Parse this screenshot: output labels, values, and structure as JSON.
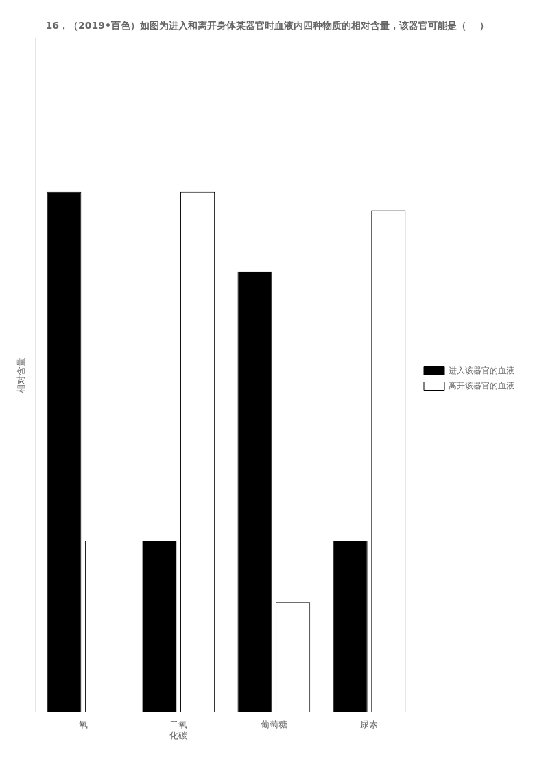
{
  "chart_data": {
    "type": "bar",
    "title": "16．（2019•百色）如图为进入和离开身体某器官时血液内四种物质的相对含量，该器官可能是（    ）",
    "y_label": "相对含量",
    "categories": [
      "氧",
      "二氧\n化碳",
      "葡萄糖",
      "尿素"
    ],
    "series": [
      {
        "name": "进入该器官的血液",
        "color": "#000000",
        "values": [
          0.85,
          0.28,
          0.72,
          0.28
        ]
      },
      {
        "name": "离开该器官的血液",
        "color": "#ffffff",
        "values": [
          0.28,
          0.85,
          0.18,
          0.82
        ]
      }
    ],
    "ylim": [
      0,
      1.1
    ],
    "grid": false,
    "legend": "right",
    "tick_labels": "x"
  }
}
